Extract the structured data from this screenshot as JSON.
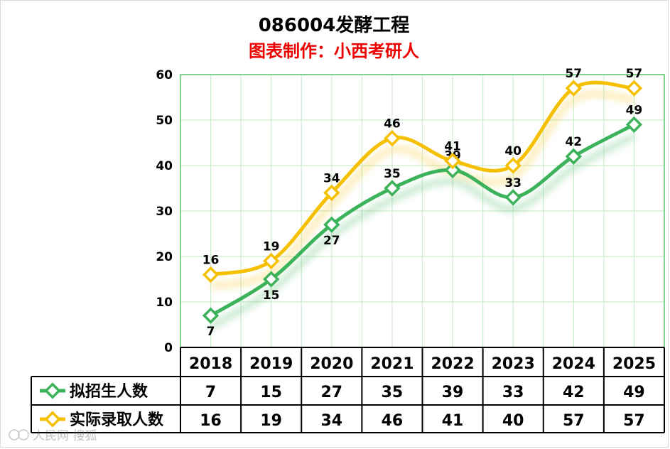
{
  "chart_data": {
    "type": "line",
    "title": "086004发酵工程",
    "subtitle": "图表制作：小西考研人",
    "categories": [
      "2018",
      "2019",
      "2020",
      "2021",
      "2022",
      "2023",
      "2024",
      "2025"
    ],
    "ylim": [
      0,
      60
    ],
    "yticks": [
      0,
      10,
      20,
      30,
      40,
      50,
      60
    ],
    "grid": true,
    "legend": "data-table-left",
    "series": [
      {
        "name": "拟招生人数",
        "color": "#3cb35a",
        "values": [
          7,
          15,
          27,
          35,
          39,
          33,
          42,
          49
        ]
      },
      {
        "name": "实际录取人数",
        "color": "#f5c000",
        "values": [
          16,
          19,
          34,
          46,
          41,
          40,
          57,
          57
        ]
      }
    ]
  },
  "colors": {
    "title": "#000000",
    "subtitle": "#ee0000",
    "grid": "#cdeccf",
    "plot_border": "#5cc46a"
  },
  "watermark": "人民网 搜狐"
}
